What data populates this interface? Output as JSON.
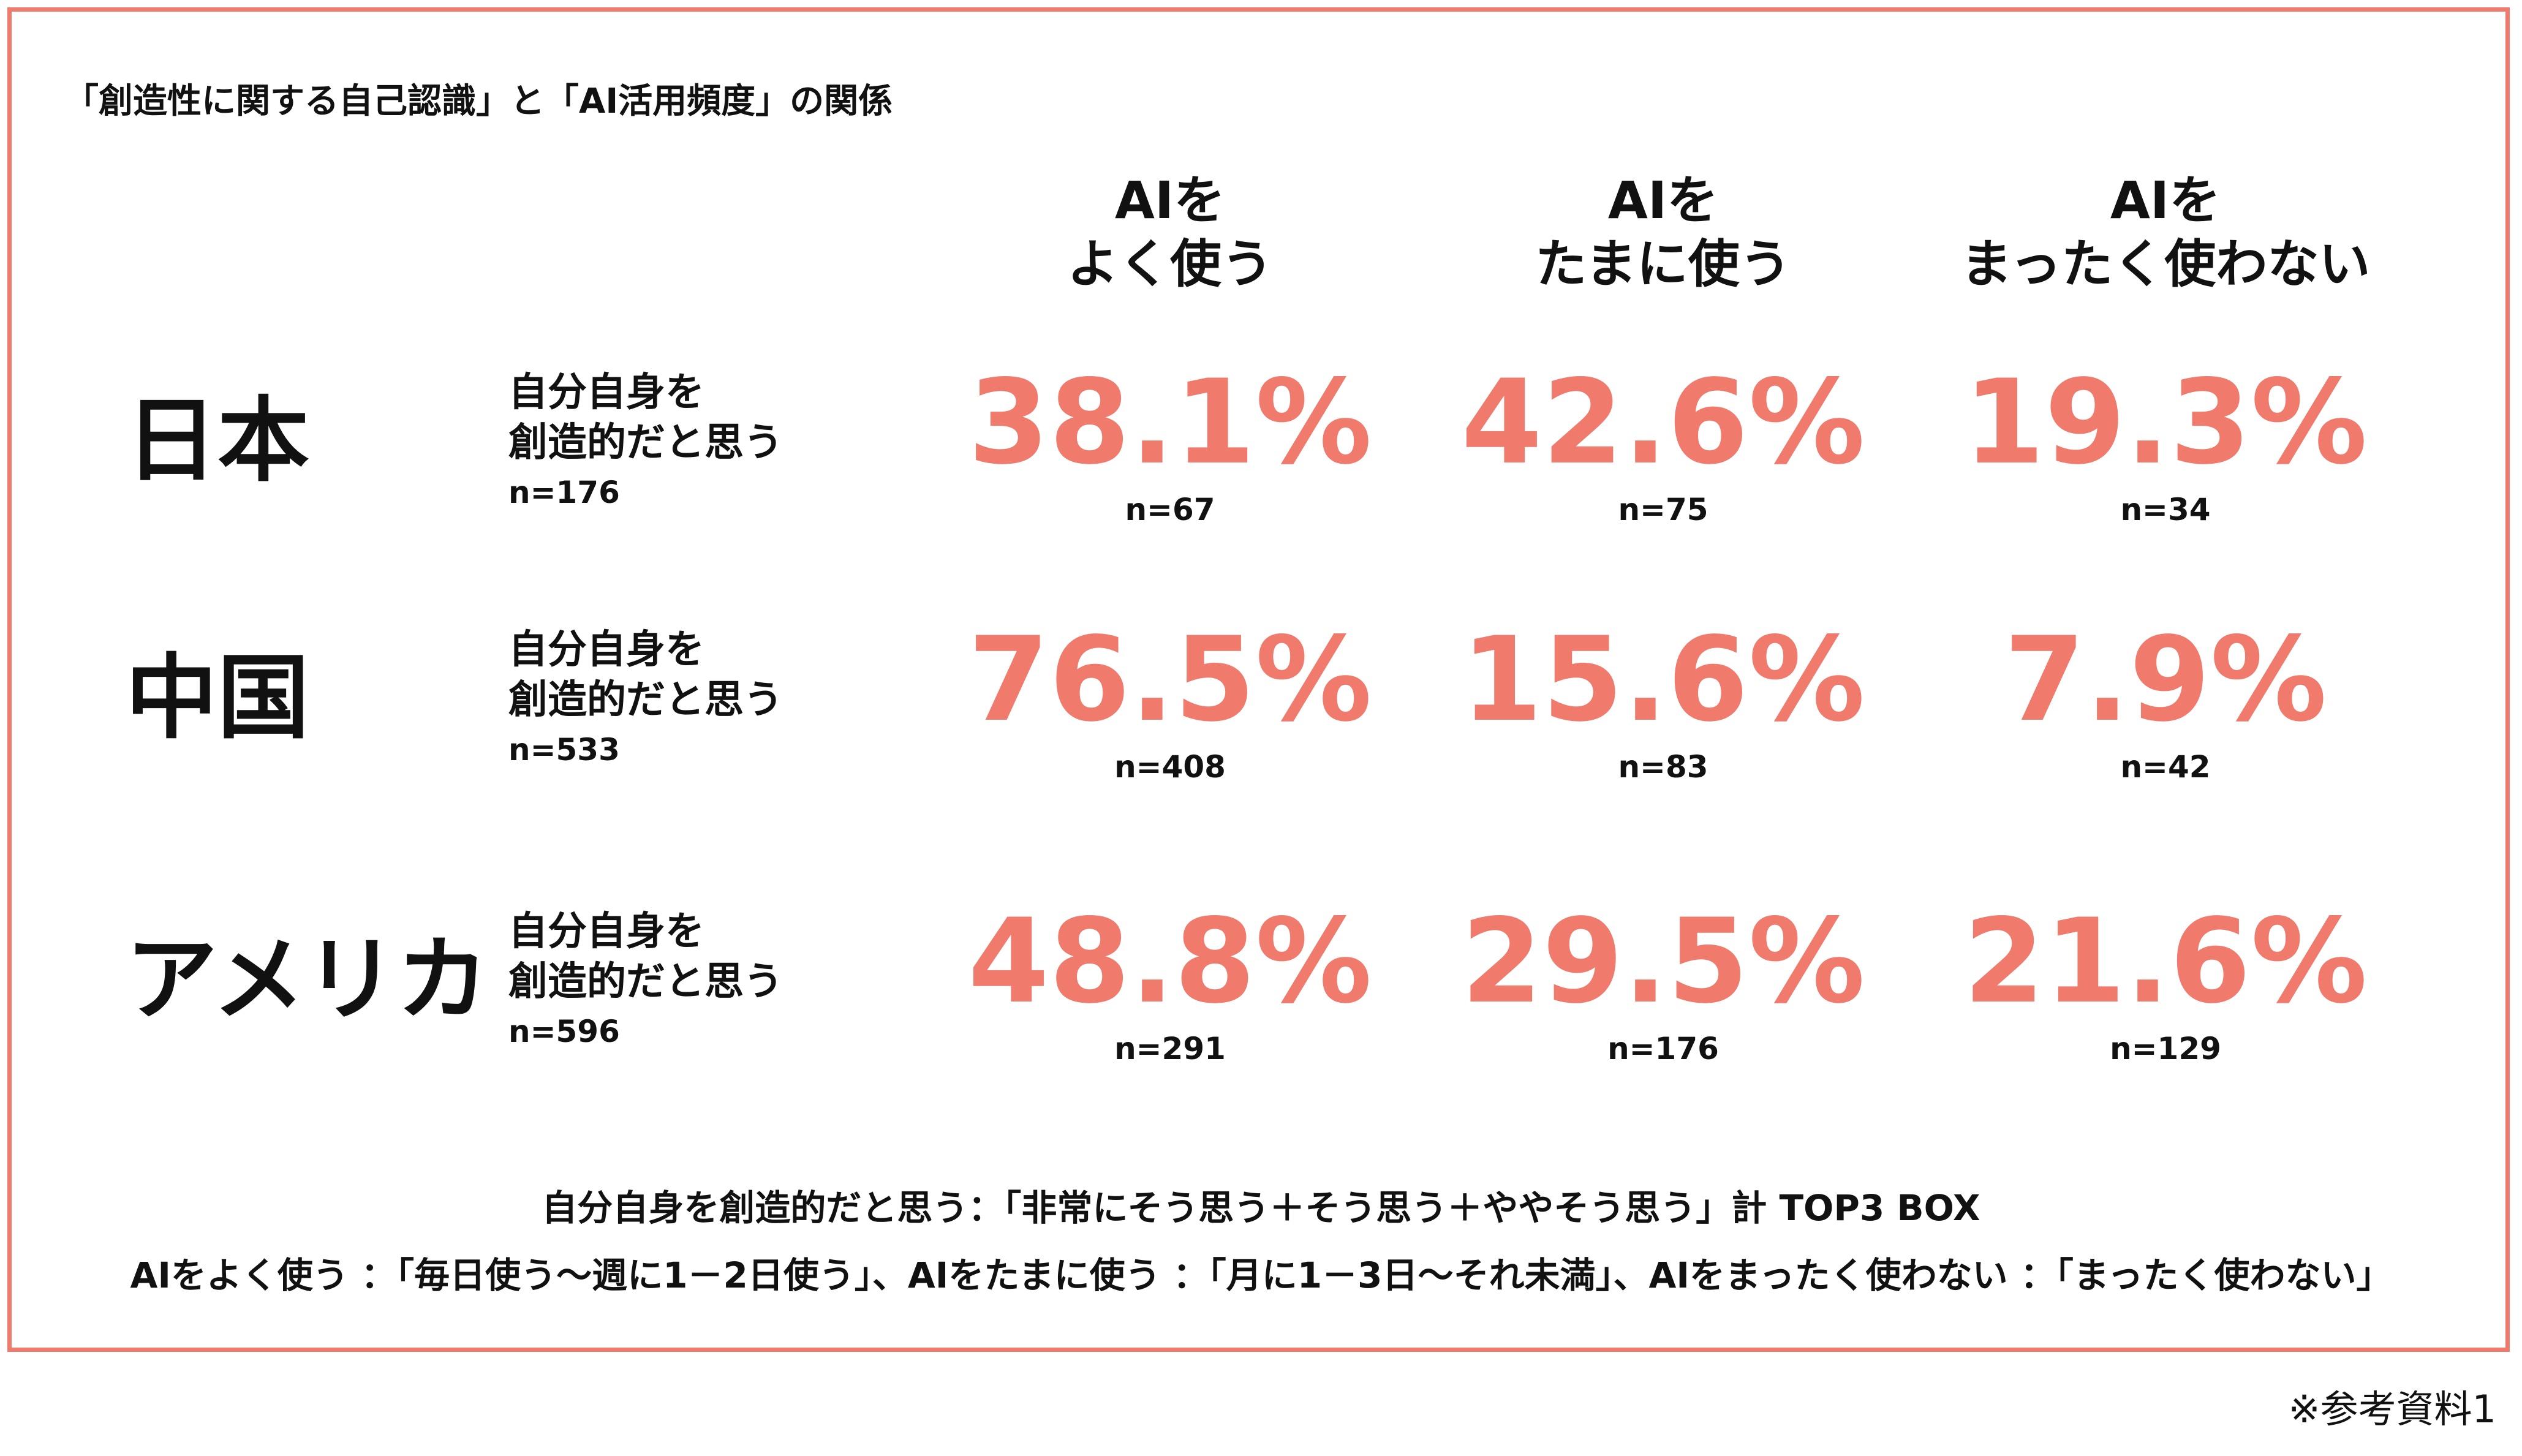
{
  "title": "「創造性に関する自己認識」と「AI活用頻度」の関係",
  "columns": [
    {
      "line1": "AIを",
      "line2": "よく使う"
    },
    {
      "line1": "AIを",
      "line2": "たまに使う"
    },
    {
      "line1": "AIを",
      "line2": "まったく使わない"
    }
  ],
  "rows": [
    {
      "country": "日本",
      "label_line1": "自分自身を",
      "label_line2": "創造的だと思う",
      "n": "n=176",
      "cells": [
        {
          "pct": "38.1%",
          "n": "n=67"
        },
        {
          "pct": "42.6%",
          "n": "n=75"
        },
        {
          "pct": "19.3%",
          "n": "n=34"
        }
      ]
    },
    {
      "country": "中国",
      "label_line1": "自分自身を",
      "label_line2": "創造的だと思う",
      "n": "n=533",
      "cells": [
        {
          "pct": "76.5%",
          "n": "n=408"
        },
        {
          "pct": "15.6%",
          "n": "n=83"
        },
        {
          "pct": "7.9%",
          "n": "n=42"
        }
      ]
    },
    {
      "country": "アメリカ",
      "label_line1": "自分自身を",
      "label_line2": "創造的だと思う",
      "n": "n=596",
      "cells": [
        {
          "pct": "48.8%",
          "n": "n=291"
        },
        {
          "pct": "29.5%",
          "n": "n=176"
        },
        {
          "pct": "21.6%",
          "n": "n=129"
        }
      ]
    }
  ],
  "notes": [
    "自分自身を創造的だと思う：「非常にそう思う＋そう思う＋ややそう思う」計 TOP3 BOX",
    "AIをよく使う ：「毎日使う〜週に1－2日使う」、AIをたまに使う ：「月に1－3日〜それ未満」、AIをまったく使わない ：「まったく使わない」"
  ],
  "source_note": "※参考資料1",
  "colors": {
    "accent": "#f07a6c",
    "text": "#111111"
  },
  "chart_data": {
    "type": "table",
    "title": "「創造性に関する自己認識」と「AI活用頻度」の関係",
    "columns": [
      "AIをよく使う",
      "AIをたまに使う",
      "AIをまったく使わない"
    ],
    "rows": [
      {
        "name": "日本",
        "n": 176,
        "values": [
          38.1,
          42.6,
          19.3
        ],
        "counts": [
          67,
          75,
          34
        ]
      },
      {
        "name": "中国",
        "n": 533,
        "values": [
          76.5,
          15.6,
          7.9
        ],
        "counts": [
          408,
          83,
          42
        ]
      },
      {
        "name": "アメリカ",
        "n": 596,
        "values": [
          48.8,
          29.5,
          21.6
        ],
        "counts": [
          291,
          176,
          129
        ]
      }
    ],
    "unit": "%"
  }
}
